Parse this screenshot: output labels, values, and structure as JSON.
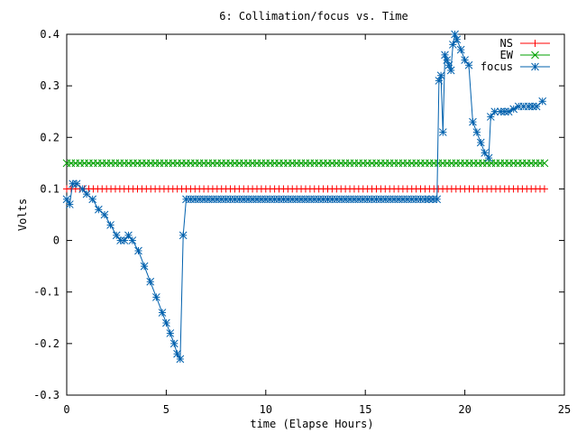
{
  "chart_data": {
    "type": "line",
    "title": "6: Collimation/focus vs. Time",
    "xlabel": "time (Elapse Hours)",
    "ylabel": "Volts",
    "xlim": [
      0,
      25
    ],
    "ylim": [
      -0.3,
      0.4
    ],
    "x_ticks": [
      0,
      5,
      10,
      15,
      20,
      25
    ],
    "y_ticks": [
      -0.3,
      -0.2,
      -0.1,
      0,
      0.1,
      0.2,
      0.3,
      0.4
    ],
    "x_tick_labels": [
      "0",
      "5",
      "10",
      "15",
      "20",
      "25"
    ],
    "y_tick_labels": [
      "-0.3",
      "-0.2",
      "-0.1",
      "0",
      "0.1",
      "0.2",
      "0.3",
      "0.4"
    ],
    "grid": false,
    "legend_position": "top-right",
    "series": [
      {
        "name": "NS",
        "color": "#ff0000",
        "marker": "plus",
        "x": [
          0,
          2,
          4,
          6,
          8,
          10,
          12,
          14,
          16,
          18,
          20,
          22,
          24
        ],
        "y": [
          0.1,
          0.1,
          0.1,
          0.1,
          0.1,
          0.1,
          0.1,
          0.1,
          0.1,
          0.1,
          0.1,
          0.1,
          0.1
        ]
      },
      {
        "name": "EW",
        "color": "#00a000",
        "marker": "cross",
        "x": [
          0,
          2,
          4,
          6,
          8,
          10,
          12,
          14,
          16,
          18,
          20,
          22,
          24
        ],
        "y": [
          0.15,
          0.15,
          0.15,
          0.15,
          0.15,
          0.15,
          0.15,
          0.15,
          0.15,
          0.15,
          0.15,
          0.15,
          0.15
        ]
      },
      {
        "name": "focus",
        "color": "#0060ad",
        "marker": "star",
        "x": [
          0,
          0.15,
          0.3,
          0.5,
          0.8,
          1.0,
          1.3,
          1.6,
          1.9,
          2.2,
          2.5,
          2.7,
          2.9,
          3.1,
          3.3,
          3.6,
          3.9,
          4.2,
          4.5,
          4.8,
          5.0,
          5.2,
          5.4,
          5.55,
          5.7,
          5.85,
          6.0,
          8,
          10,
          12,
          14,
          16,
          18,
          18.6,
          18.7,
          18.8,
          18.9,
          19.0,
          19.1,
          19.2,
          19.3,
          19.4,
          19.5,
          19.6,
          19.8,
          20.0,
          20.2,
          20.4,
          20.6,
          20.8,
          21.0,
          21.2,
          21.3,
          21.5,
          21.8,
          22.2,
          22.7,
          23.2,
          23.6,
          23.9
        ],
        "y": [
          0.08,
          0.07,
          0.11,
          0.11,
          0.1,
          0.09,
          0.08,
          0.06,
          0.05,
          0.03,
          0.01,
          0.0,
          0.0,
          0.01,
          0.0,
          -0.02,
          -0.05,
          -0.08,
          -0.11,
          -0.14,
          -0.16,
          -0.18,
          -0.2,
          -0.22,
          -0.23,
          0.01,
          0.08,
          0.08,
          0.08,
          0.08,
          0.08,
          0.08,
          0.08,
          0.08,
          0.31,
          0.32,
          0.21,
          0.36,
          0.35,
          0.34,
          0.33,
          0.38,
          0.4,
          0.39,
          0.37,
          0.35,
          0.34,
          0.23,
          0.21,
          0.19,
          0.17,
          0.16,
          0.24,
          0.25,
          0.25,
          0.25,
          0.26,
          0.26,
          0.26,
          0.27
        ]
      }
    ]
  }
}
